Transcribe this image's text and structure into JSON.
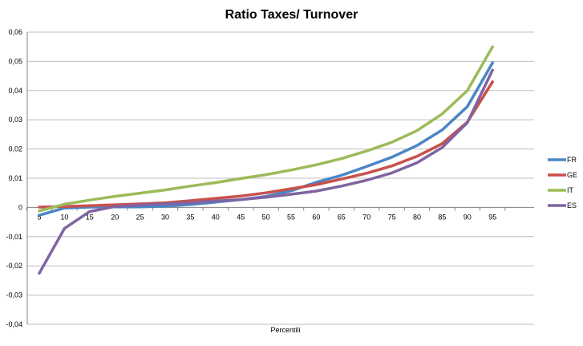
{
  "chart_data": {
    "type": "line",
    "title": "Ratio Taxes/ Turnover",
    "xlabel": "Percentili",
    "ylabel": "",
    "categories": [
      "5",
      "10",
      "15",
      "20",
      "25",
      "30",
      "35",
      "40",
      "45",
      "50",
      "55",
      "60",
      "65",
      "70",
      "75",
      "80",
      "85",
      "90",
      "95"
    ],
    "yticks": [
      "0,06",
      "0,05",
      "0,04",
      "0,03",
      "0,02",
      "0,01",
      "0",
      "-0,01",
      "-0,02",
      "-0,03",
      "-0,04"
    ],
    "ylim": [
      -0.04,
      0.06
    ],
    "grid": true,
    "legend_position": "right",
    "series": [
      {
        "name": "FR",
        "color": "#4A86C5",
        "values": [
          -0.0027,
          -0.0002,
          0.0001,
          0.0002,
          0.0002,
          0.0004,
          0.001,
          0.0018,
          0.0027,
          0.0038,
          0.0057,
          0.0086,
          0.011,
          0.014,
          0.0172,
          0.0212,
          0.0265,
          0.0345,
          0.0495
        ]
      },
      {
        "name": "GE",
        "color": "#C9504B",
        "values": [
          0.0001,
          0.0003,
          0.0006,
          0.0009,
          0.0012,
          0.0016,
          0.0023,
          0.0031,
          0.0039,
          0.005,
          0.0064,
          0.0078,
          0.0097,
          0.0117,
          0.0142,
          0.0175,
          0.0218,
          0.0292,
          0.043
        ]
      },
      {
        "name": "IT",
        "color": "#9BBB59",
        "values": [
          -0.0012,
          0.0011,
          0.0025,
          0.0038,
          0.0049,
          0.006,
          0.0073,
          0.0085,
          0.0099,
          0.0112,
          0.0128,
          0.0146,
          0.0167,
          0.0193,
          0.0223,
          0.0263,
          0.032,
          0.04,
          0.055
        ]
      },
      {
        "name": "ES",
        "color": "#8064A2",
        "values": [
          -0.0225,
          -0.0072,
          -0.0014,
          0.0003,
          0.0008,
          0.0012,
          0.0016,
          0.0022,
          0.0027,
          0.0035,
          0.0045,
          0.0056,
          0.0073,
          0.0093,
          0.0118,
          0.0153,
          0.0205,
          0.029,
          0.047
        ]
      }
    ]
  }
}
